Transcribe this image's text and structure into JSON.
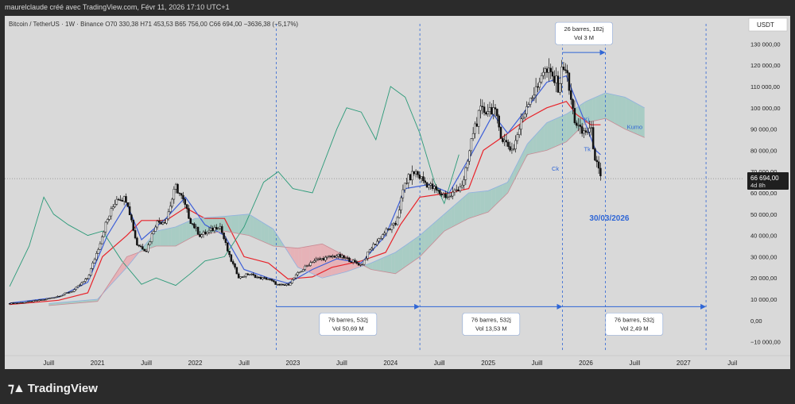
{
  "header": {
    "text": "maurelclaude créé avec TradingView.com, Févr 11, 2026 17:10 UTC+1"
  },
  "legend": "Bitcoin / TetherUS · 1W · Binance  O70 330,38  H71 453,53  B65 756,00  C66 694,00  −3636,38 (−5,17%)",
  "currency_badge": "USDT",
  "brand": "TradingView",
  "colors": {
    "background": "#d9d9d9",
    "candle": "#111111",
    "kijun": "#e8232a",
    "tenkan": "#3d5fd8",
    "chikou": "#2b9a78",
    "cloud_bull": "#9fc9c0",
    "cloud_bear": "#e8aab0",
    "span_a": "#8fb0e0",
    "span_b": "#c88a94",
    "annotation": "#2f66d6"
  },
  "chart_data": {
    "type": "candlestick",
    "symbol": "BTC/USDT",
    "interval": "1W",
    "ylim": [
      -15000,
      135000
    ],
    "y_ticks": [
      {
        "v": 130000,
        "label": "130 000,00"
      },
      {
        "v": 120000,
        "label": "120 000,00"
      },
      {
        "v": 110000,
        "label": "110 000,00"
      },
      {
        "v": 100000,
        "label": "100 000,00"
      },
      {
        "v": 90000,
        "label": "90 000,00"
      },
      {
        "v": 80000,
        "label": "80 000,00"
      },
      {
        "v": 70000,
        "label": "70 000,00"
      },
      {
        "v": 60000,
        "label": "60 000,00"
      },
      {
        "v": 50000,
        "label": "50 000,00"
      },
      {
        "v": 40000,
        "label": "40 000,00"
      },
      {
        "v": 30000,
        "label": "30 000,00"
      },
      {
        "v": 20000,
        "label": "20 000,00"
      },
      {
        "v": 10000,
        "label": "10 000,00"
      },
      {
        "v": 0,
        "label": "0,00"
      },
      {
        "v": -10000,
        "label": "−10 000,00"
      }
    ],
    "x_ticks": [
      {
        "t": 2020.5,
        "label": "Juill"
      },
      {
        "t": 2021.0,
        "label": "2021"
      },
      {
        "t": 2021.5,
        "label": "Juill"
      },
      {
        "t": 2022.0,
        "label": "2022"
      },
      {
        "t": 2022.5,
        "label": "Juill"
      },
      {
        "t": 2023.0,
        "label": "2023"
      },
      {
        "t": 2023.5,
        "label": "Juill"
      },
      {
        "t": 2024.0,
        "label": "2024"
      },
      {
        "t": 2024.5,
        "label": "Juill"
      },
      {
        "t": 2025.0,
        "label": "2025"
      },
      {
        "t": 2025.5,
        "label": "Juill"
      },
      {
        "t": 2026.0,
        "label": "2026"
      },
      {
        "t": 2026.5,
        "label": "Juill"
      },
      {
        "t": 2027.0,
        "label": "2027"
      },
      {
        "t": 2027.5,
        "label": "Juil"
      }
    ],
    "price_path": [
      [
        2020.1,
        8000
      ],
      [
        2020.25,
        8500
      ],
      [
        2020.45,
        9800
      ],
      [
        2020.6,
        11500
      ],
      [
        2020.75,
        14000
      ],
      [
        2020.9,
        20000
      ],
      [
        2021.0,
        33000
      ],
      [
        2021.08,
        45000
      ],
      [
        2021.2,
        58000
      ],
      [
        2021.3,
        57000
      ],
      [
        2021.4,
        36000
      ],
      [
        2021.5,
        33000
      ],
      [
        2021.6,
        46000
      ],
      [
        2021.7,
        47000
      ],
      [
        2021.8,
        63000
      ],
      [
        2021.87,
        57000
      ],
      [
        2021.95,
        47000
      ],
      [
        2022.05,
        40000
      ],
      [
        2022.15,
        42000
      ],
      [
        2022.25,
        45000
      ],
      [
        2022.35,
        30000
      ],
      [
        2022.45,
        20000
      ],
      [
        2022.55,
        22000
      ],
      [
        2022.65,
        20000
      ],
      [
        2022.75,
        19500
      ],
      [
        2022.85,
        16500
      ],
      [
        2022.95,
        16800
      ],
      [
        2023.05,
        22000
      ],
      [
        2023.2,
        28000
      ],
      [
        2023.3,
        29000
      ],
      [
        2023.45,
        30500
      ],
      [
        2023.55,
        29000
      ],
      [
        2023.7,
        26000
      ],
      [
        2023.8,
        34000
      ],
      [
        2023.95,
        42000
      ],
      [
        2024.05,
        45000
      ],
      [
        2024.15,
        65000
      ],
      [
        2024.25,
        70000
      ],
      [
        2024.35,
        65000
      ],
      [
        2024.5,
        60000
      ],
      [
        2024.6,
        58000
      ],
      [
        2024.75,
        65000
      ],
      [
        2024.85,
        90000
      ],
      [
        2024.92,
        98000
      ],
      [
        2025.05,
        100000
      ],
      [
        2025.15,
        85000
      ],
      [
        2025.25,
        80000
      ],
      [
        2025.35,
        95000
      ],
      [
        2025.42,
        105000
      ],
      [
        2025.5,
        108000
      ],
      [
        2025.55,
        118000
      ],
      [
        2025.65,
        115000
      ],
      [
        2025.72,
        110000
      ],
      [
        2025.78,
        122000
      ],
      [
        2025.83,
        108000
      ],
      [
        2025.88,
        95000
      ],
      [
        2025.95,
        88000
      ],
      [
        2026.05,
        90000
      ],
      [
        2026.1,
        75000
      ],
      [
        2026.15,
        66694
      ]
    ],
    "series": [
      {
        "name": "Kj",
        "color": "#e8232a",
        "points": [
          [
            2020.1,
            7500
          ],
          [
            2020.6,
            9500
          ],
          [
            2020.9,
            13000
          ],
          [
            2021.05,
            30000
          ],
          [
            2021.3,
            40000
          ],
          [
            2021.45,
            47000
          ],
          [
            2021.7,
            47000
          ],
          [
            2021.9,
            53000
          ],
          [
            2022.1,
            48000
          ],
          [
            2022.3,
            48000
          ],
          [
            2022.5,
            30000
          ],
          [
            2022.75,
            27000
          ],
          [
            2022.95,
            19500
          ],
          [
            2023.2,
            20500
          ],
          [
            2023.4,
            25000
          ],
          [
            2023.7,
            28000
          ],
          [
            2023.95,
            32000
          ],
          [
            2024.1,
            45000
          ],
          [
            2024.3,
            58000
          ],
          [
            2024.6,
            60000
          ],
          [
            2024.8,
            62000
          ],
          [
            2024.95,
            80000
          ],
          [
            2025.2,
            88000
          ],
          [
            2025.4,
            95000
          ],
          [
            2025.6,
            100000
          ],
          [
            2025.8,
            103000
          ],
          [
            2025.9,
            97000
          ],
          [
            2026.05,
            92000
          ],
          [
            2026.15,
            92000
          ]
        ]
      },
      {
        "name": "Tk",
        "color": "#3d5fd8",
        "points": [
          [
            2020.1,
            8200
          ],
          [
            2020.6,
            11000
          ],
          [
            2020.9,
            18000
          ],
          [
            2021.1,
            40000
          ],
          [
            2021.3,
            55000
          ],
          [
            2021.45,
            38000
          ],
          [
            2021.7,
            48000
          ],
          [
            2021.9,
            58000
          ],
          [
            2022.1,
            45000
          ],
          [
            2022.3,
            40000
          ],
          [
            2022.5,
            24000
          ],
          [
            2022.75,
            20000
          ],
          [
            2022.95,
            17500
          ],
          [
            2023.2,
            24000
          ],
          [
            2023.45,
            29000
          ],
          [
            2023.7,
            27000
          ],
          [
            2023.95,
            40000
          ],
          [
            2024.15,
            62000
          ],
          [
            2024.4,
            64000
          ],
          [
            2024.6,
            60000
          ],
          [
            2024.85,
            80000
          ],
          [
            2025.05,
            97000
          ],
          [
            2025.2,
            88000
          ],
          [
            2025.4,
            100000
          ],
          [
            2025.6,
            112000
          ],
          [
            2025.8,
            115000
          ],
          [
            2025.95,
            98000
          ],
          [
            2026.1,
            80000
          ],
          [
            2026.15,
            78000
          ]
        ]
      },
      {
        "name": "Ck",
        "color": "#2b9a78",
        "points": [
          [
            2020.1,
            16000
          ],
          [
            2020.3,
            35000
          ],
          [
            2020.45,
            58000
          ],
          [
            2020.55,
            50000
          ],
          [
            2020.7,
            45000
          ],
          [
            2020.9,
            40000
          ],
          [
            2021.05,
            42000
          ],
          [
            2021.25,
            28000
          ],
          [
            2021.45,
            17000
          ],
          [
            2021.6,
            20000
          ],
          [
            2021.8,
            16500
          ],
          [
            2021.95,
            22000
          ],
          [
            2022.1,
            28000
          ],
          [
            2022.3,
            30000
          ],
          [
            2022.5,
            44000
          ],
          [
            2022.7,
            65000
          ],
          [
            2022.85,
            70000
          ],
          [
            2023.0,
            62000
          ],
          [
            2023.2,
            60000
          ],
          [
            2023.45,
            90000
          ],
          [
            2023.55,
            100000
          ],
          [
            2023.7,
            98000
          ],
          [
            2023.85,
            85000
          ],
          [
            2024.0,
            110000
          ],
          [
            2024.15,
            105000
          ],
          [
            2024.3,
            88000
          ],
          [
            2024.45,
            65000
          ],
          [
            2024.55,
            55000
          ],
          [
            2024.7,
            78000
          ]
        ]
      },
      {
        "name": "Span A",
        "color": "#8fb0e0",
        "points": [
          [
            2020.5,
            8000
          ],
          [
            2021.0,
            10000
          ],
          [
            2021.3,
            25000
          ],
          [
            2021.6,
            42000
          ],
          [
            2021.8,
            44000
          ],
          [
            2022.0,
            48000
          ],
          [
            2022.3,
            49000
          ],
          [
            2022.55,
            50000
          ],
          [
            2022.8,
            43000
          ],
          [
            2023.05,
            25000
          ],
          [
            2023.3,
            20000
          ],
          [
            2023.55,
            23000
          ],
          [
            2023.8,
            27000
          ],
          [
            2024.05,
            32000
          ],
          [
            2024.3,
            40000
          ],
          [
            2024.55,
            50000
          ],
          [
            2024.8,
            60000
          ],
          [
            2025.0,
            61000
          ],
          [
            2025.2,
            65000
          ],
          [
            2025.4,
            83000
          ],
          [
            2025.6,
            93000
          ],
          [
            2025.8,
            97000
          ],
          [
            2026.0,
            103000
          ],
          [
            2026.2,
            107000
          ],
          [
            2026.4,
            105000
          ],
          [
            2026.6,
            100000
          ]
        ]
      },
      {
        "name": "Span B",
        "color": "#c88a94",
        "points": [
          [
            2020.5,
            7000
          ],
          [
            2021.0,
            9000
          ],
          [
            2021.3,
            30000
          ],
          [
            2021.6,
            35000
          ],
          [
            2021.8,
            35000
          ],
          [
            2022.0,
            40000
          ],
          [
            2022.3,
            42000
          ],
          [
            2022.55,
            40000
          ],
          [
            2022.8,
            35000
          ],
          [
            2023.05,
            34000
          ],
          [
            2023.3,
            36000
          ],
          [
            2023.55,
            30000
          ],
          [
            2023.8,
            24000
          ],
          [
            2024.05,
            22000
          ],
          [
            2024.3,
            30000
          ],
          [
            2024.55,
            42000
          ],
          [
            2024.8,
            48000
          ],
          [
            2025.0,
            51000
          ],
          [
            2025.2,
            60000
          ],
          [
            2025.4,
            78000
          ],
          [
            2025.6,
            80000
          ],
          [
            2025.8,
            84000
          ],
          [
            2026.0,
            93000
          ],
          [
            2026.2,
            95000
          ],
          [
            2026.4,
            90000
          ],
          [
            2026.6,
            86000
          ]
        ]
      }
    ],
    "last_price": {
      "value": 66694,
      "label": "66 694,00",
      "countdown": "4d 8h"
    },
    "vertical_lines": [
      2022.83,
      2024.3,
      2025.76,
      2026.2,
      2027.23
    ],
    "measurements": [
      {
        "from": 2025.76,
        "to": 2026.2,
        "at": 126000,
        "lines": [
          "26 barres, 182j",
          "Vol 3 M"
        ]
      },
      {
        "from": 2022.83,
        "to": 2024.3,
        "at": 6500,
        "lines": [
          "76 barres, 532j",
          "Vol 50,69 M"
        ]
      },
      {
        "from": 2024.3,
        "to": 2025.76,
        "at": 6500,
        "lines": [
          "76 barres, 532j",
          "Vol 13,53 M"
        ]
      },
      {
        "from": 2025.76,
        "to": 2027.23,
        "at": 6500,
        "lines": [
          "76 barres, 532j",
          "Vol 2,49 M"
        ]
      }
    ],
    "date_annotation": {
      "t": 2026.24,
      "v": 47000,
      "label": "30/03/2026"
    },
    "series_labels": [
      {
        "t": 2025.98,
        "v": 93500,
        "label": "Kj"
      },
      {
        "t": 2025.98,
        "v": 79500,
        "label": "Tk"
      },
      {
        "t": 2025.65,
        "v": 70500,
        "label": "Ck"
      },
      {
        "t": 2026.42,
        "v": 90000,
        "label": "Kumo"
      }
    ]
  }
}
